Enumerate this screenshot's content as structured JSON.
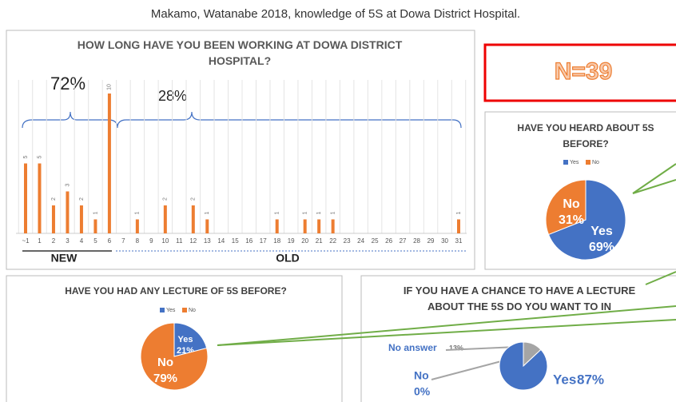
{
  "title": "Makamo, Watanabe 2018, knowledge of 5S at Dowa District Hospital.",
  "n_label": "N=39",
  "chart_data": [
    {
      "type": "bar",
      "title": "HOW LONG HAVE YOU BEEN WORKING AT DOWA DISTRICT HOSPITAL?",
      "categories": [
        "~1",
        "1",
        "2",
        "3",
        "4",
        "5",
        "6",
        "7",
        "8",
        "9",
        "10",
        "11",
        "12",
        "13",
        "14",
        "15",
        "16",
        "17",
        "18",
        "19",
        "20",
        "21",
        "22",
        "23",
        "24",
        "25",
        "26",
        "27",
        "28",
        "29",
        "30",
        "31"
      ],
      "values": [
        5,
        5,
        2,
        3,
        2,
        1,
        10,
        null,
        1,
        null,
        2,
        null,
        2,
        1,
        null,
        null,
        null,
        null,
        1,
        null,
        1,
        1,
        1,
        null,
        null,
        null,
        null,
        null,
        null,
        null,
        null,
        1
      ],
      "color": "#ed7d31",
      "annotations": [
        "72%",
        "28%",
        "NEW",
        "OLD"
      ]
    },
    {
      "type": "pie",
      "title": "HAVE YOU HEARD ABOUT 5S BEFORE?",
      "categories": [
        "Yes",
        "No"
      ],
      "values": [
        69,
        31
      ],
      "value_labels": [
        "69%",
        "31%"
      ],
      "colors": [
        "#4472c4",
        "#ed7d31"
      ],
      "legend": true
    },
    {
      "type": "pie",
      "title": "HAVE YOU HAD ANY LECTURE OF 5S BEFORE?",
      "categories": [
        "Yes",
        "No"
      ],
      "values": [
        21,
        79
      ],
      "value_labels": [
        "21%",
        "79%"
      ],
      "colors": [
        "#4472c4",
        "#ed7d31"
      ],
      "legend": true
    },
    {
      "type": "pie",
      "title": "IF YOU HAVE A CHANCE TO HAVE A LECTURE ABOUT THE 5S DO YOU WANT TO IN",
      "categories": [
        "No answer",
        "No",
        "Yes"
      ],
      "values": [
        13,
        0,
        87
      ],
      "value_labels": [
        "13%",
        "0%",
        "87%"
      ],
      "colors": [
        "#a5a5a5",
        "#ed7d31",
        "#4472c4"
      ],
      "legend": false
    }
  ]
}
